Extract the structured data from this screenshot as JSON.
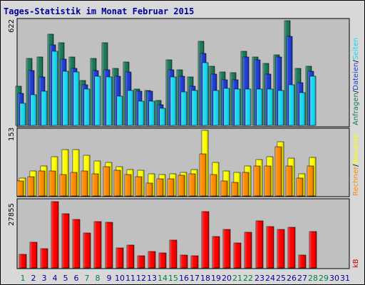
{
  "title": "Tages-Statistik im Monat Februar 2015",
  "colors": {
    "background": "#d8d8d8",
    "panel": "#c0c0c0",
    "anfragen": "#1a7a5a",
    "dateien": "#1e3ed6",
    "seiten": "#18d8f0",
    "besuche": "#ffff00",
    "rechner": "#ff8c00",
    "kb": "#ff0000",
    "weekday_label": "#0000a0",
    "weekend_label": "#008040"
  },
  "chart_data": [
    {
      "type": "bar",
      "panel": "top",
      "max_label": "622",
      "ylim": [
        0,
        622
      ],
      "legend": [
        {
          "label": "Anfragen",
          "color": "#1a7a5a"
        },
        {
          "label": "/",
          "color": "#000000"
        },
        {
          "label": "Dateien",
          "color": "#1e3ed6"
        },
        {
          "label": "/",
          "color": "#000000"
        },
        {
          "label": "Seiten",
          "color": "#18d8f0"
        }
      ],
      "categories": [
        "1",
        "2",
        "3",
        "4",
        "5",
        "6",
        "7",
        "8",
        "9",
        "10",
        "11",
        "12",
        "13",
        "14",
        "15",
        "16",
        "17",
        "18",
        "19",
        "20",
        "21",
        "22",
        "23",
        "24",
        "25",
        "26",
        "27",
        "28"
      ],
      "series": [
        {
          "name": "Anfragen",
          "values": [
            228,
            390,
            400,
            530,
            480,
            400,
            260,
            390,
            480,
            330,
            370,
            210,
            205,
            145,
            380,
            325,
            280,
            490,
            345,
            310,
            305,
            430,
            400,
            360,
            410,
            610,
            330,
            345
          ]
        },
        {
          "name": "Dateien",
          "values": [
            185,
            320,
            280,
            470,
            385,
            330,
            235,
            320,
            325,
            285,
            310,
            200,
            200,
            120,
            325,
            285,
            230,
            420,
            300,
            265,
            265,
            400,
            380,
            300,
            400,
            520,
            250,
            315
          ]
        },
        {
          "name": "Seiten",
          "values": [
            130,
            180,
            200,
            430,
            315,
            310,
            210,
            285,
            280,
            170,
            205,
            140,
            140,
            100,
            280,
            195,
            205,
            365,
            205,
            215,
            210,
            210,
            210,
            210,
            205,
            235,
            190,
            285
          ]
        }
      ]
    },
    {
      "type": "bar",
      "panel": "middle",
      "max_label": "153",
      "ylim": [
        0,
        153
      ],
      "legend": [
        {
          "label": "Rechner",
          "color": "#ff8c00"
        },
        {
          "label": "/",
          "color": "#000000"
        },
        {
          "label": "Besuche",
          "color": "#ffff00"
        }
      ],
      "categories": [
        "1",
        "2",
        "3",
        "4",
        "5",
        "6",
        "7",
        "8",
        "9",
        "10",
        "11",
        "12",
        "13",
        "14",
        "15",
        "16",
        "17",
        "18",
        "19",
        "20",
        "21",
        "22",
        "23",
        "24",
        "25",
        "26",
        "27",
        "28"
      ],
      "series": [
        {
          "name": "Besuche",
          "values": [
            42,
            58,
            70,
            92,
            108,
            108,
            95,
            82,
            78,
            68,
            62,
            60,
            52,
            50,
            52,
            55,
            62,
            153,
            78,
            58,
            55,
            70,
            85,
            92,
            126,
            88,
            52,
            90
          ]
        },
        {
          "name": "Rechner",
          "values": [
            35,
            45,
            58,
            58,
            50,
            55,
            58,
            52,
            68,
            60,
            50,
            45,
            30,
            40,
            40,
            48,
            52,
            98,
            50,
            35,
            32,
            55,
            70,
            70,
            115,
            70,
            42,
            70
          ]
        }
      ]
    },
    {
      "type": "bar",
      "panel": "bottom",
      "max_label": "27855",
      "ylim": [
        0,
        27855
      ],
      "legend": [
        {
          "label": "kB",
          "color": "#cc0000"
        }
      ],
      "categories": [
        "1",
        "2",
        "3",
        "4",
        "5",
        "6",
        "7",
        "8",
        "9",
        "10",
        "11",
        "12",
        "13",
        "14",
        "15",
        "16",
        "17",
        "18",
        "19",
        "20",
        "21",
        "22",
        "23",
        "24",
        "25",
        "26",
        "27",
        "28"
      ],
      "series": [
        {
          "name": "kB",
          "values": [
            5700,
            10700,
            8100,
            27855,
            22900,
            20500,
            14800,
            19500,
            19300,
            8300,
            9600,
            5200,
            6800,
            6300,
            11600,
            5300,
            5000,
            23600,
            13100,
            16300,
            10600,
            15100,
            19800,
            17500,
            16300,
            17000,
            5500,
            15300
          ]
        }
      ]
    }
  ],
  "days": [
    {
      "label": "1",
      "weekend": true
    },
    {
      "label": "2",
      "weekend": false
    },
    {
      "label": "3",
      "weekend": false
    },
    {
      "label": "4",
      "weekend": false
    },
    {
      "label": "5",
      "weekend": false
    },
    {
      "label": "6",
      "weekend": false
    },
    {
      "label": "7",
      "weekend": true
    },
    {
      "label": "8",
      "weekend": true
    },
    {
      "label": "9",
      "weekend": false
    },
    {
      "label": "10",
      "weekend": false
    },
    {
      "label": "11",
      "weekend": false
    },
    {
      "label": "12",
      "weekend": false
    },
    {
      "label": "13",
      "weekend": false
    },
    {
      "label": "14",
      "weekend": true
    },
    {
      "label": "15",
      "weekend": true
    },
    {
      "label": "16",
      "weekend": false
    },
    {
      "label": "17",
      "weekend": false
    },
    {
      "label": "18",
      "weekend": false
    },
    {
      "label": "19",
      "weekend": false
    },
    {
      "label": "20",
      "weekend": false
    },
    {
      "label": "21",
      "weekend": true
    },
    {
      "label": "22",
      "weekend": true
    },
    {
      "label": "23",
      "weekend": false
    },
    {
      "label": "24",
      "weekend": false
    },
    {
      "label": "25",
      "weekend": false
    },
    {
      "label": "26",
      "weekend": false
    },
    {
      "label": "27",
      "weekend": false
    },
    {
      "label": "28",
      "weekend": true
    },
    {
      "label": "29",
      "weekend": true
    },
    {
      "label": "30",
      "weekend": false
    },
    {
      "label": "31",
      "weekend": false
    }
  ]
}
